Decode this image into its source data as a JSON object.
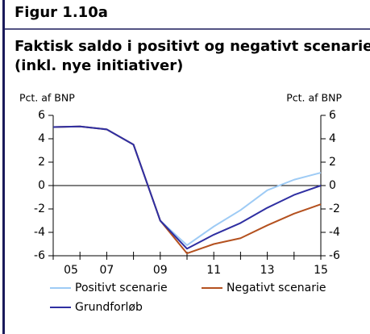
{
  "chart_data": {
    "type": "line",
    "title": "Figur 1.10a",
    "subtitle": [
      "Faktisk saldo i positivt og negativt scenarie",
      "(inkl. nye initiativer)"
    ],
    "ylabel": "Pct. af BNP",
    "y2label": "Pct. af BNP",
    "x": [
      5,
      6,
      7,
      8,
      9,
      10,
      11,
      12,
      13,
      14,
      15
    ],
    "xlim": [
      5,
      15
    ],
    "xticks": [
      {
        "value": 5,
        "label": "05"
      },
      {
        "value": 7,
        "label": "07"
      },
      {
        "value": 9,
        "label": "09"
      },
      11,
      13,
      15
    ],
    "ylim": [
      -6,
      6
    ],
    "yticks": [
      -6,
      -4,
      -2,
      0,
      2,
      4,
      6
    ],
    "y2lim": [
      -6,
      6
    ],
    "y2ticks": [
      -6,
      -4,
      -2,
      0,
      2,
      4,
      6
    ],
    "series": [
      {
        "name": "Positivt scenarie",
        "color": "#9ecbf5",
        "values": [
          5.0,
          5.05,
          4.8,
          3.5,
          -3.0,
          -5.1,
          -3.5,
          -2.1,
          -0.4,
          0.5,
          1.1
        ]
      },
      {
        "name": "Negativt scenarie",
        "color": "#b4511f",
        "values": [
          5.0,
          5.05,
          4.8,
          3.5,
          -3.0,
          -5.8,
          -5.0,
          -4.5,
          -3.4,
          -2.4,
          -1.6
        ]
      },
      {
        "name": "Grundforløb",
        "color": "#2f2fa2",
        "values": [
          5.0,
          5.05,
          4.8,
          3.5,
          -3.0,
          -5.4,
          -4.2,
          -3.2,
          -1.9,
          -0.8,
          0.0
        ]
      }
    ]
  }
}
